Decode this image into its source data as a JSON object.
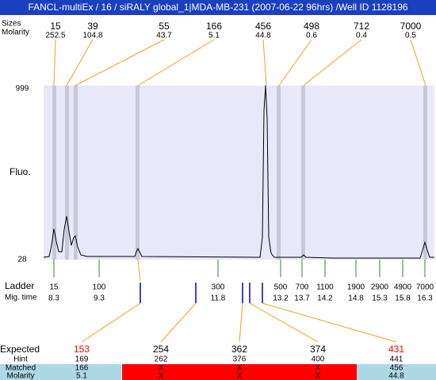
{
  "title": "FANCL-multiEx / 16 / siRALY global_1|MDA-MB-231 (2007-06-22 96hrs) /Well ID 1128196",
  "peaks": {
    "size_label": "Sizes",
    "molarity_label": "Molarity",
    "sizes": [
      15,
      39,
      55,
      166,
      456,
      498,
      712,
      7000
    ],
    "molarities": [
      252.5,
      104.8,
      43.7,
      5.1,
      44.8,
      0.6,
      0.4,
      0.5
    ]
  },
  "plot": {
    "y_label": "Fluo.",
    "y_top": 999,
    "y_bottom": 28
  },
  "ladder": {
    "label": "Ladder",
    "time_label": "Mig. time",
    "sizes": [
      15,
      100,
      300,
      500,
      700,
      1100,
      1900,
      2900,
      4900,
      7000
    ],
    "times": [
      8.3,
      9.3,
      11.8,
      13.2,
      13.7,
      14.2,
      14.8,
      15.3,
      15.8,
      16.3
    ]
  },
  "table": {
    "row_labels": [
      "Expected",
      "Hint",
      "Matched",
      "Molarity"
    ],
    "expected": [
      153,
      254,
      362,
      374,
      431
    ],
    "expected_colors": [
      "#ff0000",
      "#000000",
      "#000000",
      "#000000",
      "#ff0000"
    ],
    "column_colors": [
      "#add8e6",
      "#ff0000",
      "#ff0000",
      "#ff0000",
      "#add8e6"
    ],
    "hint": [
      169,
      262,
      376,
      400,
      441
    ],
    "matched": [
      166,
      "X",
      "X",
      "X",
      456
    ],
    "molarity": [
      5.1,
      "X",
      "X",
      "X",
      44.8
    ]
  }
}
